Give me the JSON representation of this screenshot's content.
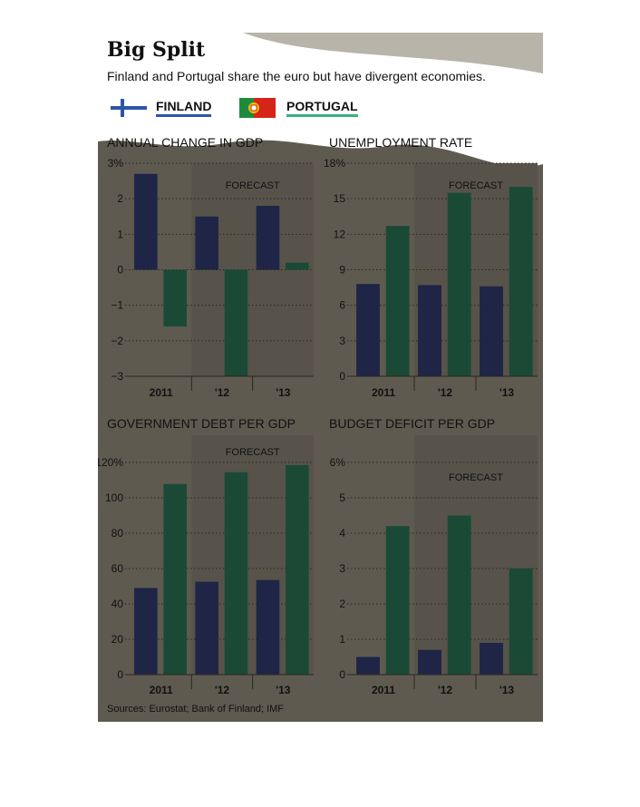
{
  "title": "Big Split",
  "subtitle": "Finland and Portugal share the euro but have divergent economies.",
  "legend": [
    {
      "label": "FINLAND",
      "color": "#1e2546",
      "flag": "finland-flag-icon"
    },
    {
      "label": "PORTUGAL",
      "color": "#1a4a36",
      "flag": "portugal-flag-icon"
    }
  ],
  "forecast_label": "FORECAST",
  "source": "Sources: Eurostat; Bank of Finland; IMF",
  "chart_data": [
    {
      "type": "bar",
      "title": "ANNUAL CHANGE IN GDP",
      "categories": [
        "2011",
        "'12",
        "'13"
      ],
      "series": [
        {
          "name": "FINLAND",
          "values": [
            2.7,
            1.5,
            1.8
          ]
        },
        {
          "name": "PORTUGAL",
          "values": [
            -1.6,
            -3.0,
            0.2
          ]
        }
      ],
      "ylim": [
        -3,
        3
      ],
      "yticks": [
        3,
        2,
        1,
        0,
        -1,
        -2,
        -3
      ],
      "ytick_labels": [
        "3%",
        "2",
        "1",
        "0",
        "−1",
        "−2",
        "−3"
      ],
      "forecast_from": 1
    },
    {
      "type": "bar",
      "title": "UNEMPLOYMENT RATE",
      "categories": [
        "2011",
        "'12",
        "'13"
      ],
      "series": [
        {
          "name": "FINLAND",
          "values": [
            7.8,
            7.7,
            7.6
          ]
        },
        {
          "name": "PORTUGAL",
          "values": [
            12.7,
            15.5,
            16.0
          ]
        }
      ],
      "ylim": [
        0,
        18
      ],
      "yticks": [
        18,
        15,
        12,
        9,
        6,
        3,
        0
      ],
      "ytick_labels": [
        "18%",
        "15",
        "12",
        "9",
        "6",
        "3",
        "0"
      ],
      "forecast_from": 1
    },
    {
      "type": "bar",
      "title": "GOVERNMENT DEBT PER GDP",
      "categories": [
        "2011",
        "'12",
        "'13"
      ],
      "series": [
        {
          "name": "FINLAND",
          "values": [
            49,
            52.5,
            53.5
          ]
        },
        {
          "name": "PORTUGAL",
          "values": [
            107.8,
            114.5,
            118.5
          ]
        }
      ],
      "ylim": [
        0,
        120
      ],
      "yticks": [
        120,
        100,
        80,
        60,
        40,
        20,
        0
      ],
      "ytick_labels": [
        "120%",
        "100",
        "80",
        "60",
        "40",
        "20",
        "0"
      ],
      "forecast_from": 1
    },
    {
      "type": "bar",
      "title": "BUDGET DEFICIT PER GDP",
      "categories": [
        "2011",
        "'12",
        "'13"
      ],
      "series": [
        {
          "name": "FINLAND",
          "values": [
            0.5,
            0.7,
            0.9
          ]
        },
        {
          "name": "PORTUGAL",
          "values": [
            4.2,
            4.5,
            3.0
          ]
        }
      ],
      "ylim": [
        0,
        6
      ],
      "yticks": [
        6,
        5,
        4,
        3,
        2,
        1,
        0
      ],
      "ytick_labels": [
        "6%",
        "5",
        "4",
        "3",
        "2",
        "1",
        "0"
      ],
      "forecast_from": 1
    }
  ],
  "colors": {
    "finland": "#1e2546",
    "portugal": "#1a4a36",
    "forecast_shade": "#57534a",
    "background": "#5f5a50",
    "header": "#ffffff"
  }
}
